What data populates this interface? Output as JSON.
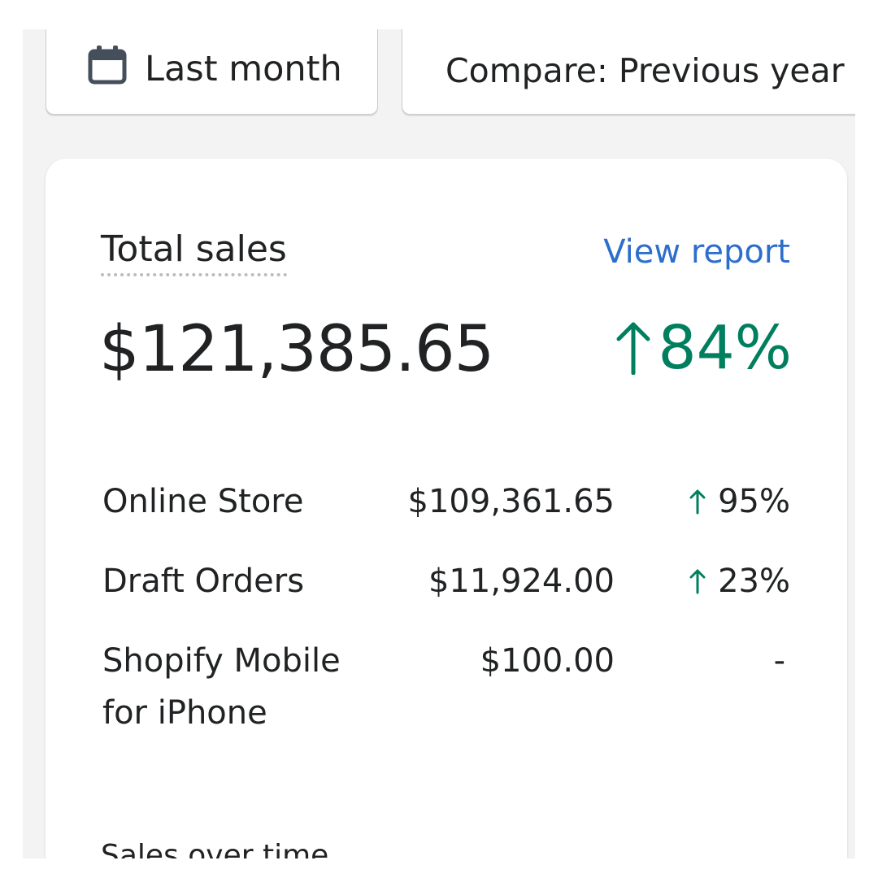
{
  "toolbar": {
    "date_range_label": "Last month",
    "compare_label": "Compare: Previous year"
  },
  "card": {
    "title": "Total sales",
    "view_report_label": "View report",
    "total_amount": "$121,385.65",
    "total_change": "84%",
    "rows": [
      {
        "name": "Online Store",
        "amount": "$109,361.65",
        "change": "95%",
        "trend": "up"
      },
      {
        "name": "Draft Orders",
        "amount": "$11,924.00",
        "change": "23%",
        "trend": "up"
      },
      {
        "name": "Shopify Mobile for iPhone",
        "amount": "$100.00",
        "change": "-",
        "trend": "none"
      }
    ],
    "section_title": "Sales over time"
  },
  "colors": {
    "positive": "#007f5f",
    "link": "#2c6ecb",
    "text": "#202223",
    "surface": "#f3f3f3"
  },
  "icons": {
    "date_button": "calendar-icon",
    "trend_up": "arrow-up-icon"
  }
}
